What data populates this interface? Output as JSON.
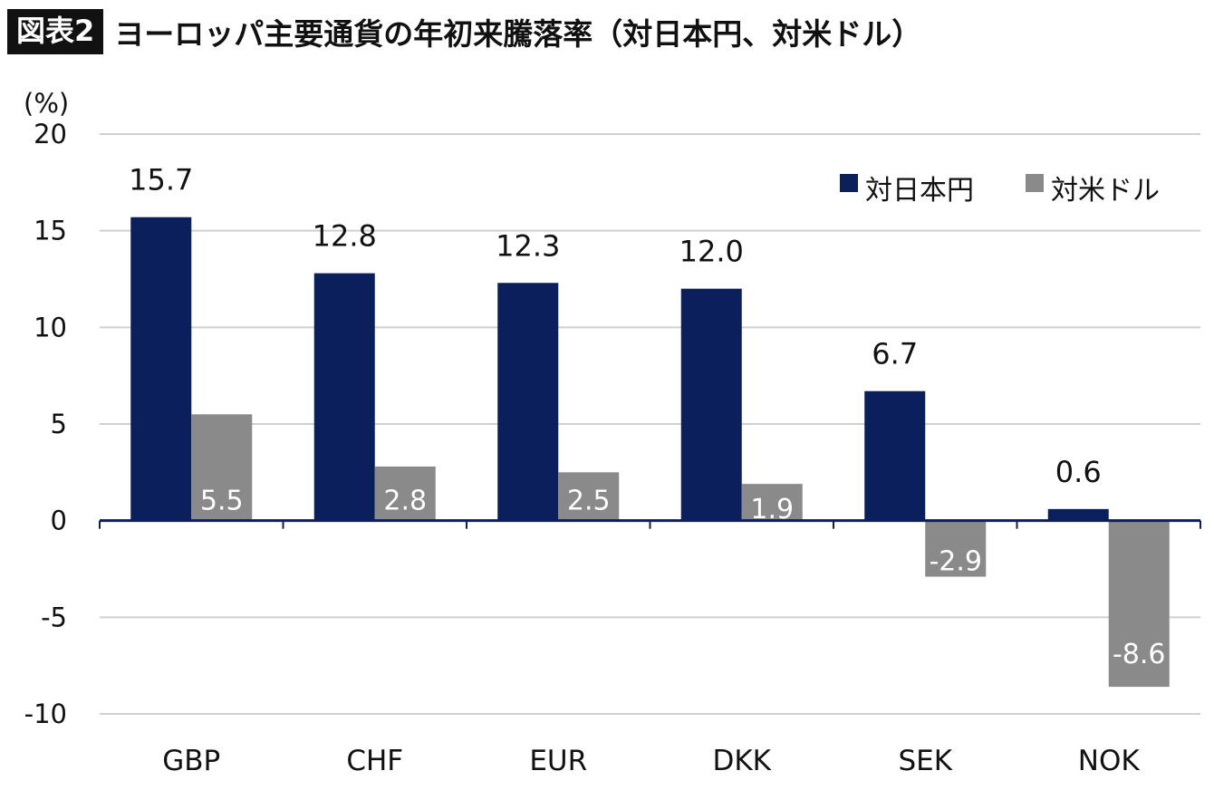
{
  "header": {
    "badge": "図表2",
    "title": "ヨーロッパ主要通貨の年初来騰落率（対日本円、対米ドル）"
  },
  "chart_data": {
    "type": "bar",
    "ylabel": "(%)",
    "ylim": [
      -10,
      20
    ],
    "yticks": [
      20,
      15,
      10,
      5,
      0,
      -5,
      -10
    ],
    "ytick_labels": [
      "20",
      "15",
      "10",
      "5",
      "0",
      "-5",
      "-10"
    ],
    "grid": true,
    "legend_position": "top-right",
    "categories": [
      "GBP",
      "CHF",
      "EUR",
      "DKK",
      "SEK",
      "NOK"
    ],
    "series": [
      {
        "name": "対日本円",
        "color": "#0a1f5c",
        "values": [
          15.7,
          12.8,
          12.3,
          12.0,
          6.7,
          0.6
        ],
        "labels": [
          "15.7",
          "12.8",
          "12.3",
          "12.0",
          "6.7",
          "0.6"
        ]
      },
      {
        "name": "対米ドル",
        "color": "#8a8a8a",
        "values": [
          5.5,
          2.8,
          2.5,
          1.9,
          -2.9,
          -8.6
        ],
        "labels": [
          "5.5",
          "2.8",
          "2.5",
          "1.9",
          "-2.9",
          "-8.6"
        ]
      }
    ]
  }
}
